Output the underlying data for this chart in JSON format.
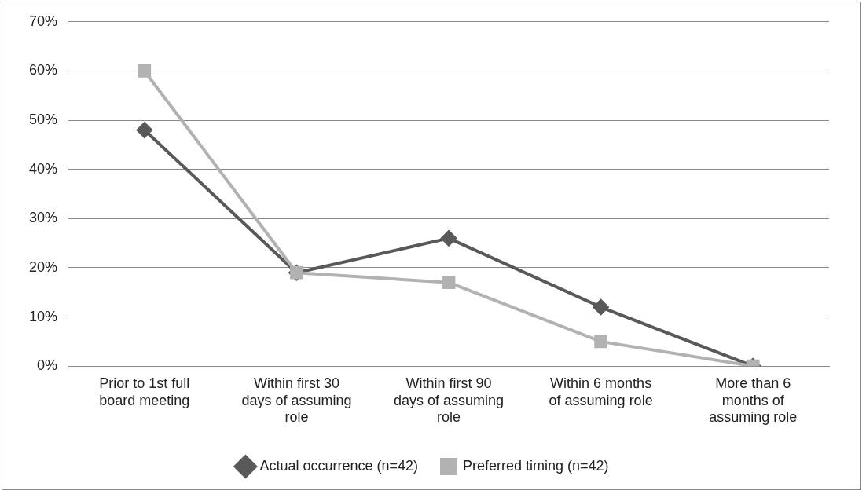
{
  "chart_data": {
    "type": "line",
    "categories": [
      "Prior to 1st full board meeting",
      "Within first 30 days of assuming role",
      "Within first 90 days of assuming role",
      "Within 6 months of assuming role",
      "More than 6 months of assuming role"
    ],
    "series": [
      {
        "name": "Actual occurrence (n=42)",
        "color": "#595959",
        "marker": "diamond",
        "values": [
          48,
          19,
          26,
          12,
          0
        ]
      },
      {
        "name": "Preferred timing (n=42)",
        "color": "#b2b2b2",
        "marker": "square",
        "values": [
          60,
          19,
          17,
          5,
          0
        ]
      }
    ],
    "ylim": [
      0,
      70
    ],
    "yticks": [
      {
        "value": 0,
        "label": "0%"
      },
      {
        "value": 10,
        "label": "10%"
      },
      {
        "value": 20,
        "label": "20%"
      },
      {
        "value": 30,
        "label": "30%"
      },
      {
        "value": 40,
        "label": "40%"
      },
      {
        "value": 50,
        "label": "50%"
      },
      {
        "value": 60,
        "label": "60%"
      },
      {
        "value": 70,
        "label": "70%"
      }
    ],
    "grid": "y",
    "legend": "bottom",
    "line_style": "solid"
  }
}
